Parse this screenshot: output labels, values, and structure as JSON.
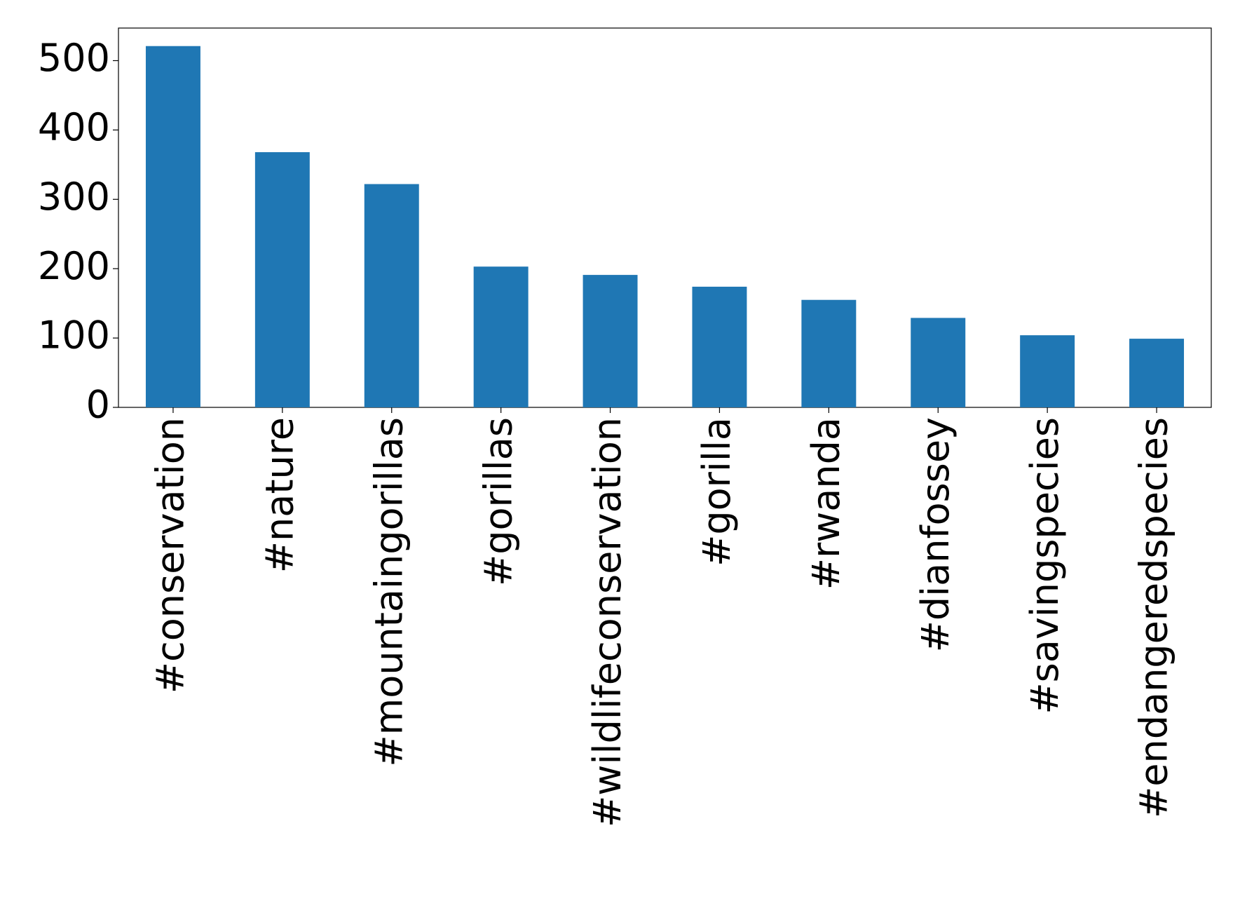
{
  "chart_data": {
    "type": "bar",
    "categories": [
      "#conservation",
      "#nature",
      "#mountaingorillas",
      "#gorillas",
      "#wildlifeconservation",
      "#gorilla",
      "#rwanda",
      "#dianfossey",
      "#savingspecies",
      "#endangeredspecies"
    ],
    "values": [
      521,
      368,
      322,
      203,
      191,
      174,
      155,
      129,
      104,
      99
    ],
    "color": "#1f77b4",
    "ylim": [
      0,
      547
    ],
    "yticks": [
      0,
      100,
      200,
      300,
      400,
      500
    ],
    "grid": false
  }
}
